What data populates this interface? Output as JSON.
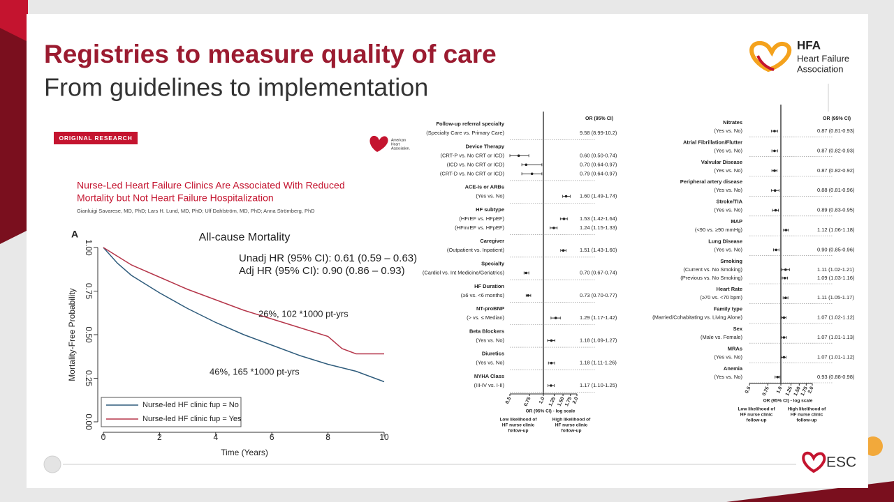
{
  "slide": {
    "title": "Registries to measure quality of care",
    "subtitle": "From guidelines to implementation"
  },
  "logos": {
    "hfa": [
      "HFA",
      "Heart Failure",
      "Association"
    ],
    "aha": [
      "American",
      "Heart",
      "Association."
    ],
    "esc": "ESC"
  },
  "article": {
    "badge": "ORIGINAL RESEARCH",
    "title": [
      "Nurse-Led Heart Failure Clinics Are Associated With Reduced",
      "Mortality but Not Heart Failure Hospitalization"
    ],
    "authors": "Gianluigi Savarese, MD, PhD; Lars H. Lund, MD, PhD; Ulf Dahlström, MD, PhD; Anna Strömberg, PhD"
  },
  "chart_data": {
    "type": "line",
    "panel_label": "A",
    "title": "All-cause Mortality",
    "xlabel": "Time (Years)",
    "ylabel": "Mortality-Free Probability",
    "x": [
      0,
      0.5,
      1,
      2,
      3,
      4,
      5,
      6,
      7,
      8,
      8.5,
      9,
      10
    ],
    "series": [
      {
        "name": "Nurse-led HF clinic fup = No",
        "color": "#2f5c7c",
        "values": [
          1,
          0.91,
          0.84,
          0.74,
          0.65,
          0.57,
          0.5,
          0.44,
          0.38,
          0.33,
          0.31,
          0.29,
          0.23
        ]
      },
      {
        "name": "Nurse-led HF clinic fup = Yes",
        "color": "#b5364a",
        "values": [
          1,
          0.95,
          0.9,
          0.83,
          0.76,
          0.7,
          0.64,
          0.59,
          0.54,
          0.49,
          0.42,
          0.39,
          0.39
        ]
      }
    ],
    "xlim": [
      0,
      10
    ],
    "ylim": [
      0,
      1
    ],
    "xticks": [
      0,
      2,
      4,
      6,
      8,
      10
    ],
    "yticks": [
      {
        "value": 0,
        "label": "0.00"
      },
      {
        "value": 0.25,
        "label": "0.25"
      },
      {
        "value": 0.5,
        "label": "0.50"
      },
      {
        "value": 0.75,
        "label": "0.75"
      },
      {
        "value": 1,
        "label": "1.00"
      }
    ],
    "annotations": [
      "Unadj HR (95% CI): 0.61 (0.59 – 0.63)",
      "Adj HR (95% CI): 0.90 (0.86 – 0.93)",
      "26%, 102 *1000 pt-yrs",
      "46%, 165 *1000 pt-yrs"
    ],
    "legend": "lower left"
  },
  "forest_plots": [
    {
      "header": "OR (95% CI)",
      "axis_title": "OR (95% CI) - log scale",
      "log_scale": true,
      "low_label": [
        "Low likelihood of",
        "HF nurse clinic",
        "follow-up"
      ],
      "high_label": [
        "High likelihood of",
        "HF nurse clinic",
        "follow-up"
      ],
      "xticks": [
        0.5,
        0.75,
        {
          "value": 1,
          "label": "1.0"
        },
        1.25,
        {
          "value": 1.5,
          "label": "1.50"
        },
        1.75,
        {
          "value": 2,
          "label": "2.0"
        }
      ],
      "groups": [
        {
          "title": "Follow-up referral specialty",
          "rows": [
            {
              "label": "(Specialty Care vs. Primary Care)",
              "ci_label": "9.58 (8.99-10.2)",
              "or": 9.58,
              "lo": 8.99,
              "hi": 10.2
            }
          ]
        },
        {
          "title": "Device Therapy",
          "rows": [
            {
              "label": "(CRT-P vs. No CRT or ICD)",
              "ci_label": "0.60 (0.50-0.74)",
              "or": 0.6,
              "lo": 0.5,
              "hi": 0.74
            },
            {
              "label": "(ICD vs. No CRT or ICD)",
              "ci_label": "0.70 (0.64-0.97)",
              "or": 0.7,
              "lo": 0.64,
              "hi": 0.97
            },
            {
              "label": "(CRT-D vs. No CRT or ICD)",
              "ci_label": "0.79 (0.64-0.97)",
              "or": 0.79,
              "lo": 0.64,
              "hi": 0.97
            }
          ]
        },
        {
          "title": "ACE-Is or ARBs",
          "rows": [
            {
              "label": "(Yes vs. No)",
              "ci_label": "1.60 (1.49-1.74)",
              "or": 1.6,
              "lo": 1.49,
              "hi": 1.74
            }
          ]
        },
        {
          "title": "HF subtype",
          "rows": [
            {
              "label": "(HFrEF vs. HFpEF)",
              "ci_label": "1.53 (1.42-1.64)",
              "or": 1.53,
              "lo": 1.42,
              "hi": 1.64
            },
            {
              "label": "(HFmrEF vs. HFpEF)",
              "ci_label": "1.24 (1.15-1.33)",
              "or": 1.24,
              "lo": 1.15,
              "hi": 1.33
            }
          ]
        },
        {
          "title": "Caregiver",
          "rows": [
            {
              "label": "(Outpatient vs. Inpatient)",
              "ci_label": "1.51 (1.43-1.60)",
              "or": 1.51,
              "lo": 1.43,
              "hi": 1.6
            }
          ]
        },
        {
          "title": "Specialty",
          "rows": [
            {
              "label": "(Cardiol vs. Int Medicine/Geriatrics)",
              "ci_label": "0.70 (0.67-0.74)",
              "or": 0.7,
              "lo": 0.67,
              "hi": 0.74
            }
          ]
        },
        {
          "title": "HF Duration",
          "rows": [
            {
              "label": "(≥6 vs. <6 months)",
              "ci_label": "0.73 (0.70-0.77)",
              "or": 0.73,
              "lo": 0.7,
              "hi": 0.77
            }
          ]
        },
        {
          "title": "NT-proBNP",
          "rows": [
            {
              "label": "(> vs. ≤ Median)",
              "ci_label": "1.29 (1.17-1.42)",
              "or": 1.29,
              "lo": 1.17,
              "hi": 1.42
            }
          ]
        },
        {
          "title": "Beta Blockers",
          "rows": [
            {
              "label": "(Yes vs. No)",
              "ci_label": "1.18 (1.09-1.27)",
              "or": 1.18,
              "lo": 1.09,
              "hi": 1.27
            }
          ]
        },
        {
          "title": "Diuretics",
          "rows": [
            {
              "label": "(Yes vs. No)",
              "ci_label": "1.18 (1.11-1.26)",
              "or": 1.18,
              "lo": 1.11,
              "hi": 1.26
            }
          ]
        },
        {
          "title": "NYHA Class",
          "rows": [
            {
              "label": "(III-IV vs. I-II)",
              "ci_label": "1.17 (1.10-1.25)",
              "or": 1.17,
              "lo": 1.1,
              "hi": 1.25
            }
          ]
        }
      ]
    },
    {
      "header": "OR (95% CI)",
      "axis_title": "OR (95% CI) - log scale",
      "log_scale": true,
      "low_label": [
        "Low likelihood of",
        "HF nurse clinic",
        "follow-up"
      ],
      "high_label": [
        "High likelihood of",
        "HF nurse clinic",
        "follow-up"
      ],
      "xticks": [
        0.5,
        0.75,
        {
          "value": 1,
          "label": "1.0"
        },
        1.25,
        {
          "value": 1.5,
          "label": "1.50"
        },
        1.75,
        {
          "value": 2,
          "label": "2.0"
        }
      ],
      "groups": [
        {
          "title": "Nitrates",
          "rows": [
            {
              "label": "(Yes vs. No)",
              "ci_label": "0.87 (0.81-0.93)",
              "or": 0.87,
              "lo": 0.81,
              "hi": 0.93
            }
          ]
        },
        {
          "title": "Atrial Fibrillation/Flutter",
          "rows": [
            {
              "label": "(Yes vs. No)",
              "ci_label": "0.87 (0.82-0.93)",
              "or": 0.87,
              "lo": 0.82,
              "hi": 0.93
            }
          ]
        },
        {
          "title": "Valvular Disease",
          "rows": [
            {
              "label": "(Yes vs. No)",
              "ci_label": "0.87 (0.82-0.92)",
              "or": 0.87,
              "lo": 0.82,
              "hi": 0.92
            }
          ]
        },
        {
          "title": "Peripheral artery disease",
          "rows": [
            {
              "label": "(Yes vs. No)",
              "ci_label": "0.88 (0.81-0.96)",
              "or": 0.88,
              "lo": 0.81,
              "hi": 0.96
            }
          ]
        },
        {
          "title": "Stroke/TIA",
          "rows": [
            {
              "label": "(Yes vs. No)",
              "ci_label": "0.89 (0.83-0.95)",
              "or": 0.89,
              "lo": 0.83,
              "hi": 0.95
            }
          ]
        },
        {
          "title": "MAP",
          "rows": [
            {
              "label": "(<90 vs. ≥90 mmHg)",
              "ci_label": "1.12 (1.06-1.18)",
              "or": 1.12,
              "lo": 1.06,
              "hi": 1.18
            }
          ]
        },
        {
          "title": "Lung Disease",
          "rows": [
            {
              "label": "(Yes vs. No)",
              "ci_label": "0.90 (0.85-0.96)",
              "or": 0.9,
              "lo": 0.85,
              "hi": 0.96
            }
          ]
        },
        {
          "title": "Smoking",
          "rows": [
            {
              "label": "(Current vs. No Smoking)",
              "ci_label": "1.11 (1.02-1.21)",
              "or": 1.11,
              "lo": 1.02,
              "hi": 1.21
            },
            {
              "label": "(Previous vs. No Smoking)",
              "ci_label": "1.09 (1.03-1.16)",
              "or": 1.09,
              "lo": 1.03,
              "hi": 1.16
            }
          ]
        },
        {
          "title": "Heart Rate",
          "rows": [
            {
              "label": "(≥70 vs. <70 bpm)",
              "ci_label": "1.11 (1.05-1.17)",
              "or": 1.11,
              "lo": 1.05,
              "hi": 1.17
            }
          ]
        },
        {
          "title": "Family type",
          "rows": [
            {
              "label": "(Married/Cohabitating vs. Living Alone)",
              "ci_label": "1.07 (1.02-1.12)",
              "or": 1.07,
              "lo": 1.02,
              "hi": 1.12
            }
          ]
        },
        {
          "title": "Sex",
          "rows": [
            {
              "label": "(Male vs. Female)",
              "ci_label": "1.07 (1.01-1.13)",
              "or": 1.07,
              "lo": 1.01,
              "hi": 1.13
            }
          ]
        },
        {
          "title": "MRAs",
          "rows": [
            {
              "label": "(Yes vs. No)",
              "ci_label": "1.07 (1.01-1.12)",
              "or": 1.07,
              "lo": 1.01,
              "hi": 1.12
            }
          ]
        },
        {
          "title": "Anemia",
          "rows": [
            {
              "label": "(Yes vs. No)",
              "ci_label": "0.93 (0.88-0.98)",
              "or": 0.93,
              "lo": 0.88,
              "hi": 0.98
            }
          ]
        }
      ]
    }
  ]
}
